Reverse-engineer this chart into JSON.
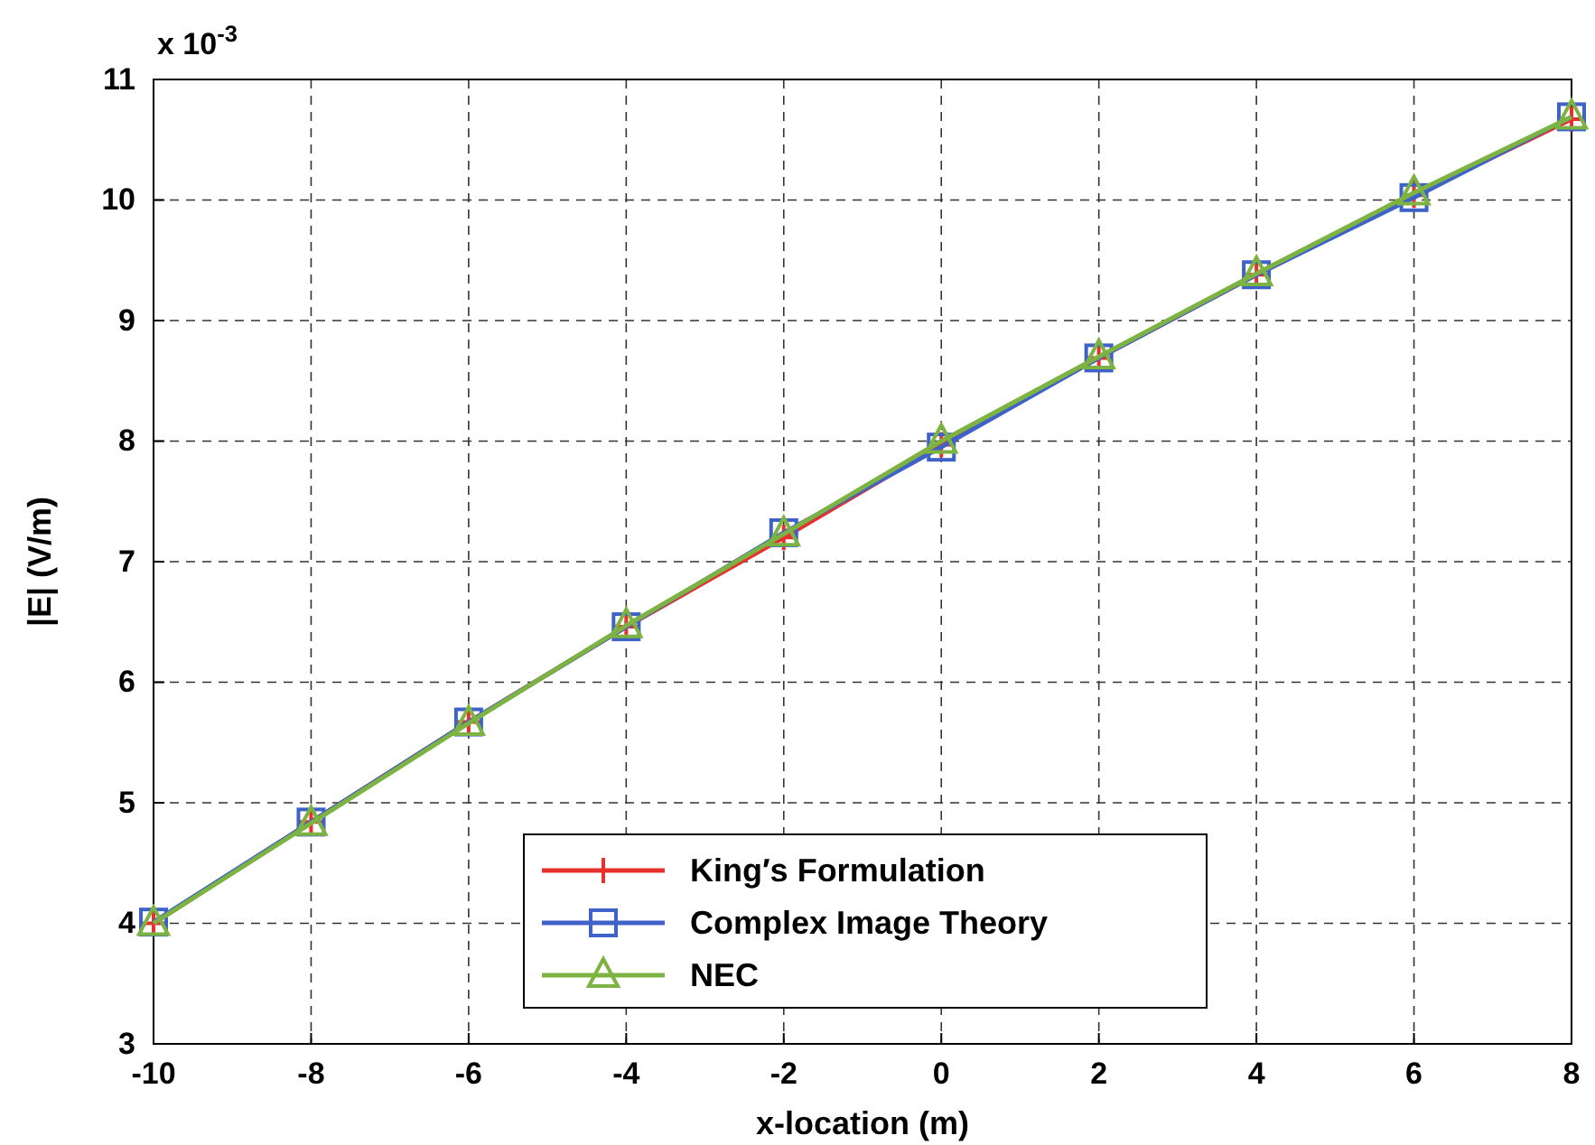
{
  "chart_data": {
    "type": "line",
    "xlabel": "x-location (m)",
    "ylabel": "|E| (V/m)",
    "annotations": [
      "x 10$^{-3}$"
    ],
    "x": [
      -10,
      -8,
      -6,
      -4,
      -2,
      0,
      2,
      4,
      6,
      8
    ],
    "series": [
      {
        "name": "King′s Formulation",
        "color": "#e8312f",
        "marker": "cross",
        "values": [
          4.0,
          4.84,
          5.67,
          6.46,
          7.2,
          7.97,
          8.69,
          9.38,
          10.04,
          10.67
        ]
      },
      {
        "name": "Complex Image Theory",
        "color": "#3f62c8",
        "marker": "square",
        "values": [
          4.01,
          4.84,
          5.67,
          6.46,
          7.24,
          7.95,
          8.69,
          9.38,
          10.02,
          10.69
        ]
      },
      {
        "name": "NEC",
        "color": "#7cb342",
        "marker": "triangle",
        "values": [
          4.0,
          4.83,
          5.66,
          6.47,
          7.23,
          8.0,
          8.7,
          9.39,
          10.06,
          10.69
        ]
      }
    ],
    "xlim": [
      -10,
      8
    ],
    "xticks": [
      -10,
      -8,
      -6,
      -4,
      -2,
      0,
      2,
      4,
      6,
      8
    ],
    "ylim": [
      3,
      11
    ],
    "yticks": [
      3,
      4,
      5,
      6,
      7,
      8,
      9,
      10,
      11
    ],
    "grid": true,
    "legend": "bottom",
    "line_style": "solid"
  }
}
